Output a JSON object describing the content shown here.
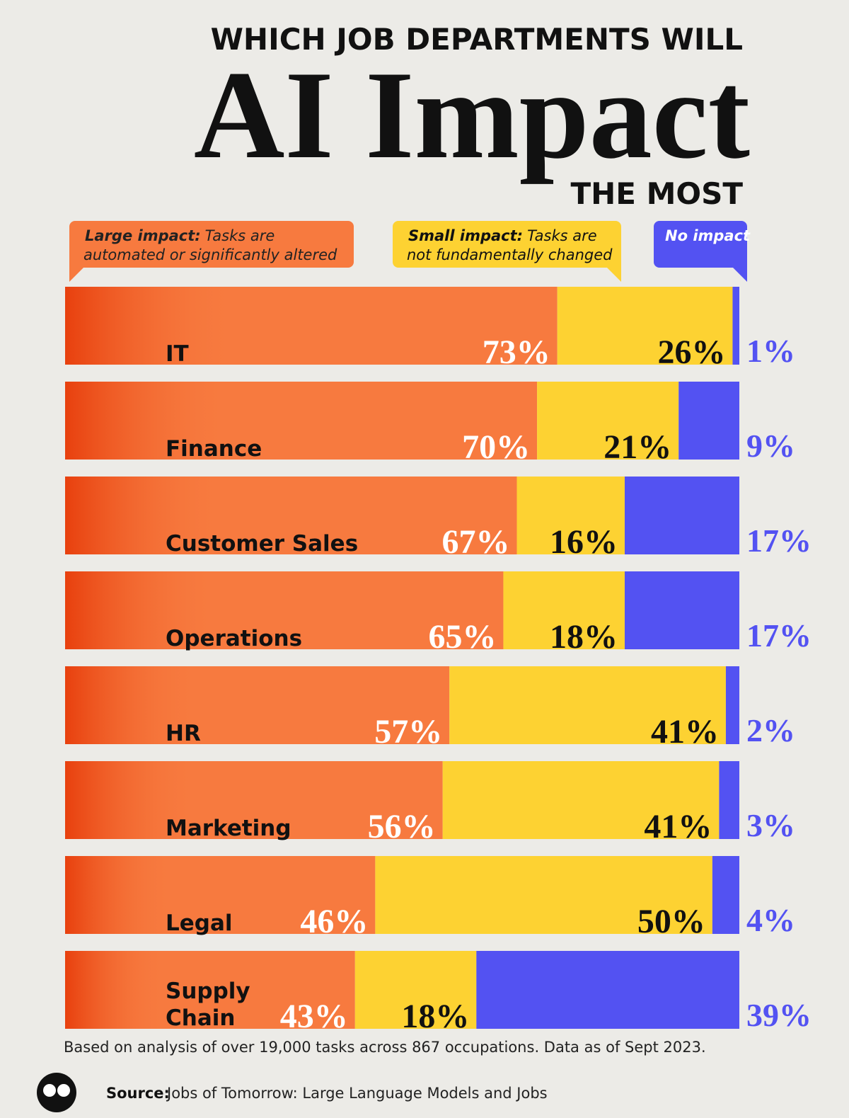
{
  "chart_data": {
    "type": "stacked-bar-horizontal",
    "title_top": "WHICH JOB DEPARTMENTS WILL",
    "title": "AI Impact",
    "title_bottom": "THE MOST",
    "categories": [
      "IT",
      "Finance",
      "Customer Sales",
      "Operations",
      "HR",
      "Marketing",
      "Legal",
      "Supply\nChain"
    ],
    "xlim": [
      0,
      100
    ],
    "series": [
      {
        "name": "Large impact:",
        "description": "Tasks are automated or significantly altered",
        "color": "#f77a3f",
        "values": [
          73,
          70,
          67,
          65,
          57,
          56,
          46,
          43
        ],
        "value_labels": [
          "73%",
          "70%",
          "67%",
          "65%",
          "57%",
          "56%",
          "46%",
          "43%"
        ]
      },
      {
        "name": "Small impact:",
        "description": "Tasks are not fundamentally changed",
        "color": "#fdd232",
        "values": [
          26,
          21,
          16,
          18,
          41,
          41,
          50,
          18
        ],
        "value_labels": [
          "26%",
          "21%",
          "16%",
          "18%",
          "41%",
          "41%",
          "50%",
          "18%"
        ]
      },
      {
        "name": "No impact",
        "color": "#5352f2",
        "values": [
          1,
          9,
          17,
          17,
          2,
          3,
          4,
          39
        ],
        "value_labels": [
          "1%",
          "9%",
          "17%",
          "17%",
          "2%",
          "3%",
          "4%",
          "39%"
        ]
      }
    ],
    "note": "Based on analysis of over 19,000 tasks across 867 occupations. Data as of Sept 2023.",
    "source_label": "Source:",
    "source": "Jobs of Tomorrow: Large Language Models and Jobs"
  }
}
